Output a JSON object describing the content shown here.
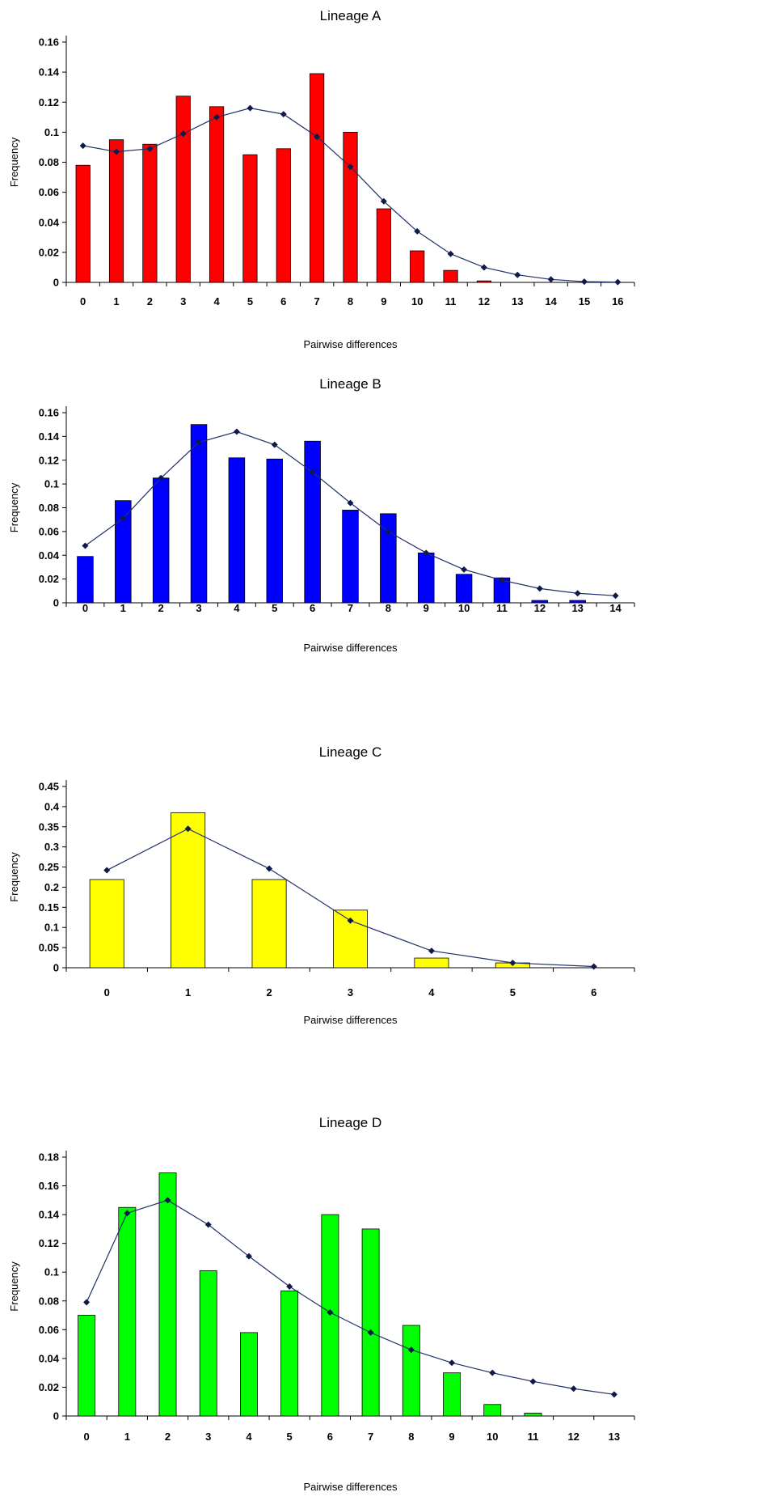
{
  "chart_data": [
    {
      "type": "bar",
      "title": "Lineage A",
      "xlabel": "Pairwise differences",
      "ylabel": "Frequency",
      "ylim": [
        0,
        0.16
      ],
      "yticks": [
        "0",
        "0.02",
        "0.04",
        "0.06",
        "0.08",
        "0.1",
        "0.12",
        "0.14",
        "0.16"
      ],
      "categories": [
        "0",
        "1",
        "2",
        "3",
        "4",
        "5",
        "6",
        "7",
        "8",
        "9",
        "10",
        "11",
        "12",
        "13",
        "14",
        "15",
        "16"
      ],
      "bar_color": "#ff0000",
      "series": [
        {
          "kind": "bar",
          "values": [
            0.078,
            0.095,
            0.092,
            0.124,
            0.117,
            0.085,
            0.089,
            0.139,
            0.1,
            0.049,
            0.021,
            0.008,
            0.001,
            0,
            0,
            0,
            0
          ]
        },
        {
          "kind": "line",
          "values": [
            0.091,
            0.087,
            0.089,
            0.099,
            0.11,
            0.116,
            0.112,
            0.097,
            0.077,
            0.054,
            0.034,
            0.019,
            0.01,
            0.005,
            0.002,
            0.0005,
            0.0002
          ]
        }
      ]
    },
    {
      "type": "bar",
      "title": "Lineage B",
      "xlabel": "Pairwise differences",
      "ylabel": "Frequency",
      "ylim": [
        0,
        0.16
      ],
      "yticks": [
        "0",
        "0.02",
        "0.04",
        "0.06",
        "0.08",
        "0.1",
        "0.12",
        "0.14",
        "0.16"
      ],
      "categories": [
        "0",
        "1",
        "2",
        "3",
        "4",
        "5",
        "6",
        "7",
        "8",
        "9",
        "10",
        "11",
        "12",
        "13",
        "14"
      ],
      "bar_color": "#0000ff",
      "series": [
        {
          "kind": "bar",
          "values": [
            0.039,
            0.086,
            0.105,
            0.15,
            0.122,
            0.121,
            0.136,
            0.078,
            0.075,
            0.042,
            0.024,
            0.021,
            0.002,
            0.002,
            0
          ]
        },
        {
          "kind": "line",
          "values": [
            0.048,
            0.071,
            0.105,
            0.135,
            0.144,
            0.133,
            0.11,
            0.084,
            0.06,
            0.042,
            0.028,
            0.019,
            0.012,
            0.008,
            0.006
          ]
        }
      ]
    },
    {
      "type": "bar",
      "title": "Lineage C",
      "xlabel": "Pairwise differences",
      "ylabel": "Frequency",
      "ylim": [
        0,
        0.45
      ],
      "yticks": [
        "0",
        "0.05",
        "0.1",
        "0.15",
        "0.2",
        "0.25",
        "0.3",
        "0.35",
        "0.4",
        "0.45"
      ],
      "categories": [
        "0",
        "1",
        "2",
        "3",
        "4",
        "5",
        "6"
      ],
      "bar_color": "#ffff00",
      "series": [
        {
          "kind": "bar",
          "values": [
            0.219,
            0.385,
            0.219,
            0.143,
            0.024,
            0.012,
            0
          ]
        },
        {
          "kind": "line",
          "values": [
            0.242,
            0.345,
            0.246,
            0.117,
            0.042,
            0.012,
            0.003
          ]
        }
      ]
    },
    {
      "type": "bar",
      "title": "Lineage D",
      "xlabel": "Pairwise differences",
      "ylabel": "Frequency",
      "ylim": [
        0,
        0.18
      ],
      "yticks": [
        "0",
        "0.02",
        "0.04",
        "0.06",
        "0.08",
        "0.1",
        "0.12",
        "0.14",
        "0.16",
        "0.18"
      ],
      "categories": [
        "0",
        "1",
        "2",
        "3",
        "4",
        "5",
        "6",
        "7",
        "8",
        "9",
        "10",
        "11",
        "12",
        "13"
      ],
      "bar_color": "#00ff00",
      "series": [
        {
          "kind": "bar",
          "values": [
            0.07,
            0.145,
            0.169,
            0.101,
            0.058,
            0.087,
            0.14,
            0.13,
            0.063,
            0.03,
            0.008,
            0.002,
            0,
            0
          ]
        },
        {
          "kind": "line",
          "values": [
            0.079,
            0.141,
            0.15,
            0.133,
            0.111,
            0.09,
            0.072,
            0.058,
            0.046,
            0.037,
            0.03,
            0.024,
            0.019,
            0.015
          ]
        }
      ]
    }
  ],
  "colors": {
    "line": "#1f2f6b",
    "marker": "#0d1a4a"
  }
}
